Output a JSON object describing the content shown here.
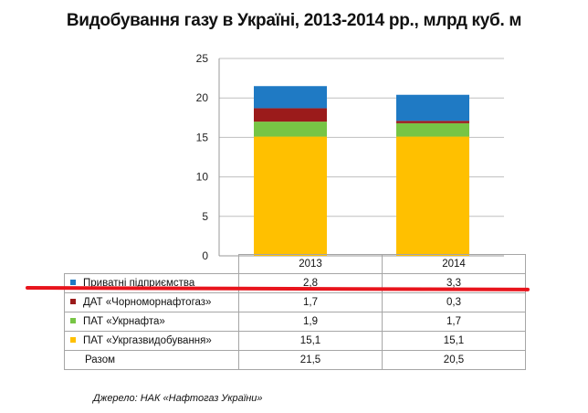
{
  "chart_data": {
    "type": "bar",
    "stacked": true,
    "title": "Видобування газу в Україні, 2013-2014 рр., млрд куб. м",
    "categories": [
      "2013",
      "2014"
    ],
    "series": [
      {
        "name": "ПАТ «Укргазвидобування»",
        "values": [
          15.1,
          15.1
        ],
        "value_labels": [
          "15,1",
          "15,1"
        ],
        "color": "#FFC000"
      },
      {
        "name": "ПАТ «Укрнафта»",
        "values": [
          1.9,
          1.7
        ],
        "value_labels": [
          "1,9",
          "1,7"
        ],
        "color": "#77C545"
      },
      {
        "name": "ДАТ «Чорноморнафтогаз»",
        "values": [
          1.7,
          0.3
        ],
        "value_labels": [
          "1,7",
          "0,3"
        ],
        "color": "#9B1B1B"
      },
      {
        "name": "Приватні підприємства",
        "values": [
          2.8,
          3.3
        ],
        "value_labels": [
          "2,8",
          "3,3"
        ],
        "color": "#1F7AC4"
      }
    ],
    "table_row_order": [
      3,
      2,
      1,
      0
    ],
    "total": {
      "label": "Разом",
      "values": [
        "21,5",
        "20,5"
      ]
    },
    "ylim": [
      0,
      25
    ],
    "yticks": [
      0,
      5,
      10,
      15,
      20,
      25
    ],
    "grid": true,
    "xlabel": "",
    "ylabel": ""
  },
  "source": "Джерело: НАК «Нафтогаз України»",
  "annotation_color": "#e8141c"
}
